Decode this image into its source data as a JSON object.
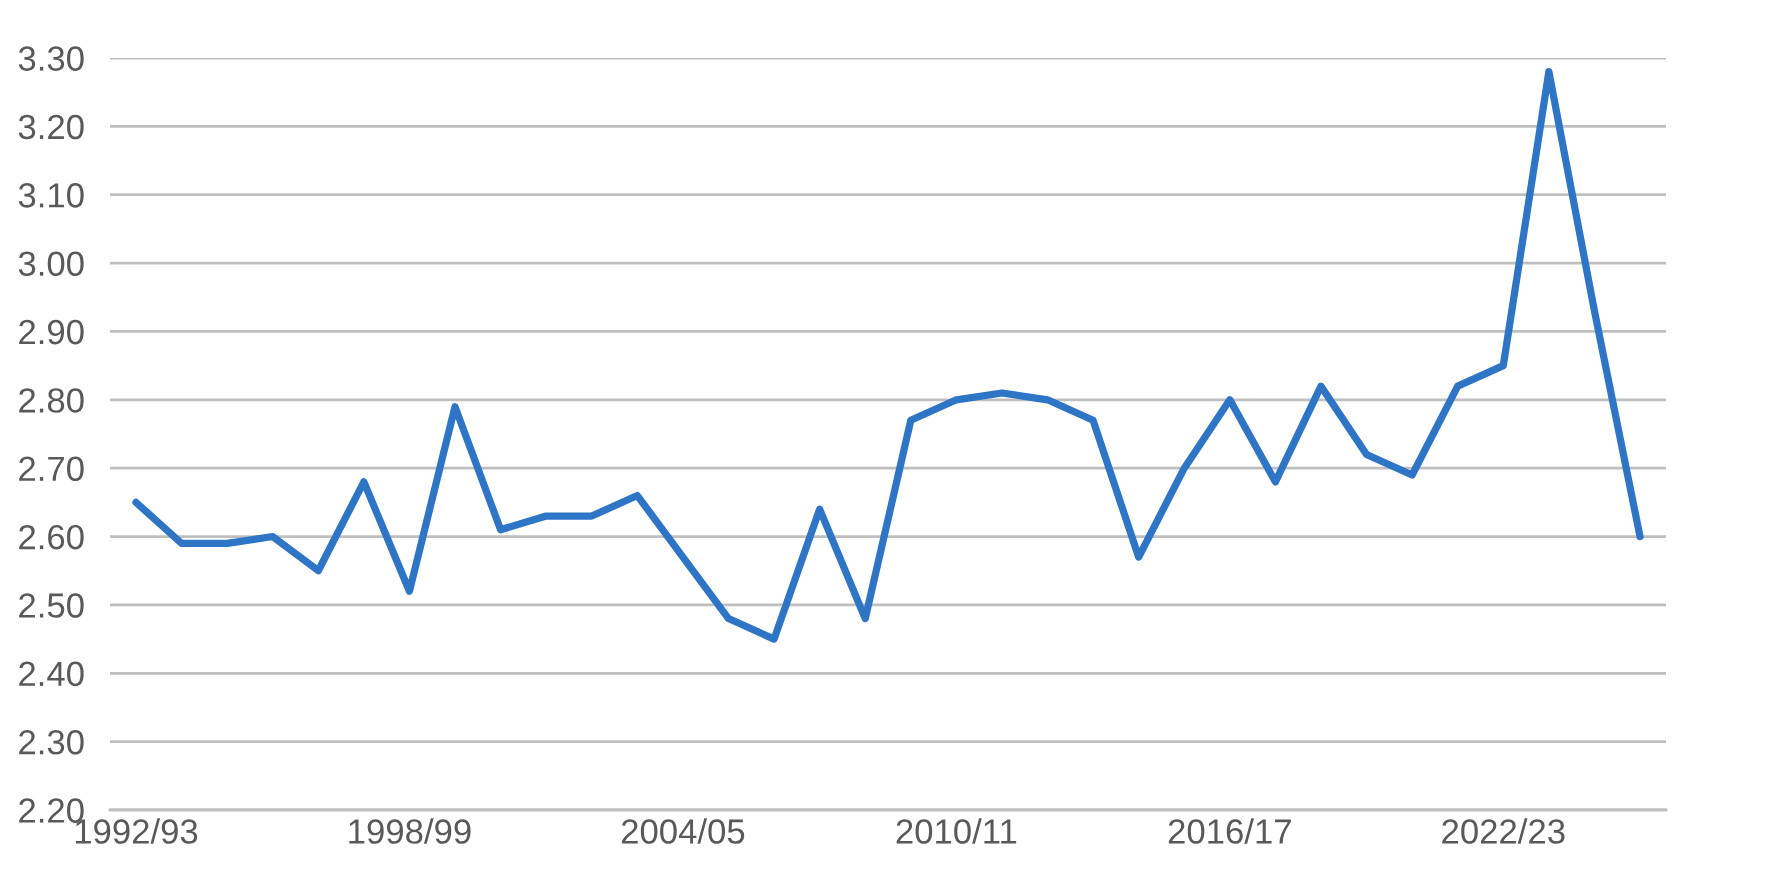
{
  "chart_data": {
    "type": "line",
    "categories": [
      "1992/93",
      null,
      null,
      null,
      null,
      null,
      "1998/99",
      null,
      null,
      null,
      null,
      null,
      "2004/05",
      null,
      null,
      null,
      null,
      null,
      "2010/11",
      null,
      null,
      null,
      null,
      null,
      "2016/17",
      null,
      null,
      null,
      null,
      null,
      "2022/23",
      null,
      null,
      null
    ],
    "series": [
      {
        "color": "#2e75c6",
        "values": [
          2.65,
          2.59,
          2.59,
          2.6,
          2.55,
          2.68,
          2.52,
          2.79,
          2.61,
          2.63,
          2.63,
          2.66,
          2.57,
          2.48,
          2.45,
          2.64,
          2.48,
          2.77,
          2.8,
          2.81,
          2.8,
          2.77,
          2.57,
          2.7,
          2.8,
          2.68,
          2.82,
          2.72,
          2.69,
          2.82,
          2.85,
          3.28,
          2.93,
          2.6
        ]
      }
    ],
    "ylim": [
      2.2,
      3.3
    ],
    "yticks": [
      {
        "value": 2.2,
        "label": "2.20"
      },
      {
        "value": 2.3,
        "label": "2.30"
      },
      {
        "value": 2.4,
        "label": "2.40"
      },
      {
        "value": 2.5,
        "label": "2.50"
      },
      {
        "value": 2.6,
        "label": "2.60"
      },
      {
        "value": 2.7,
        "label": "2.70"
      },
      {
        "value": 2.8,
        "label": "2.80"
      },
      {
        "value": 2.9,
        "label": "2.90"
      },
      {
        "value": 3.0,
        "label": "3.00"
      },
      {
        "value": 3.1,
        "label": "3.10"
      },
      {
        "value": 3.2,
        "label": "3.20"
      },
      {
        "value": 3.3,
        "label": "3.30"
      }
    ],
    "grid": "y",
    "marker": "none",
    "line_style": "solid"
  }
}
